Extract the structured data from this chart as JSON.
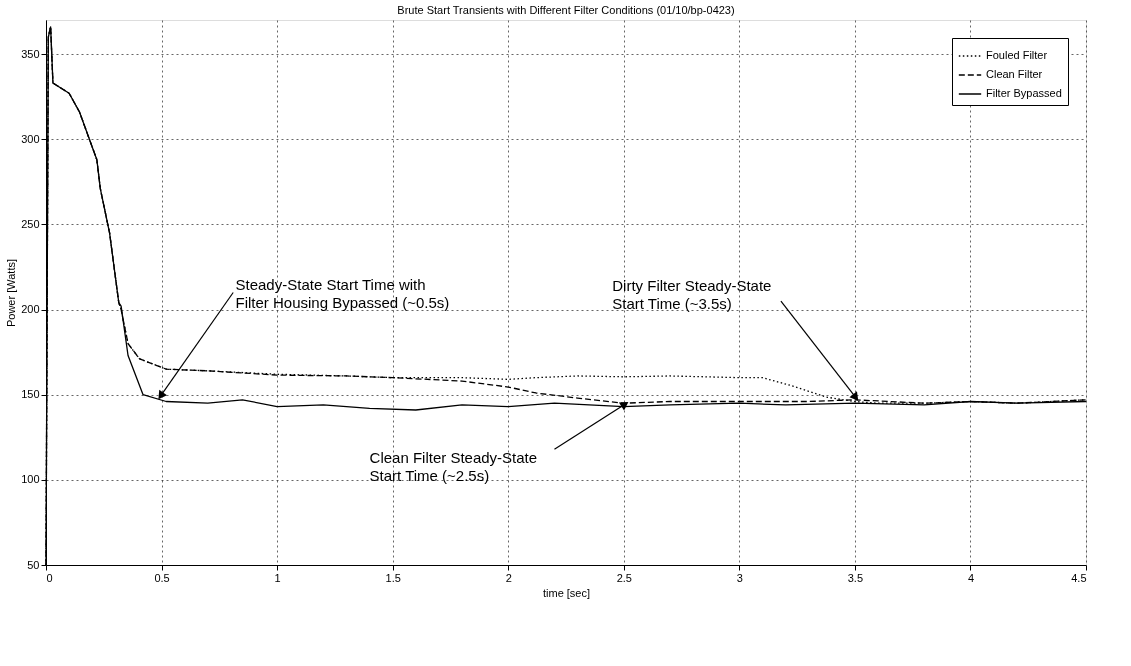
{
  "chart_data": {
    "type": "line",
    "title": "Brute Start Transients with Different Filter Conditions (01/10/bp-0423)",
    "xlabel": "time [sec]",
    "ylabel": "Power [Watts]",
    "xlim": [
      0,
      4.5
    ],
    "xticks": [
      0,
      0.5,
      1,
      1.5,
      2,
      2.5,
      3,
      3.5,
      4,
      4.5
    ],
    "ylim": [
      50,
      370
    ],
    "yticks": [
      50,
      100,
      150,
      200,
      250,
      300,
      350
    ],
    "grid": true,
    "legend": "top right",
    "series": [
      {
        "name": "Fouled Filter",
        "color": "#000000",
        "line_style": "dotted",
        "x": [
          0,
          0.01,
          0.02,
          0.03,
          0.1,
          0.145,
          0.185,
          0.22,
          0.235,
          0.275,
          0.315,
          0.325,
          0.355,
          0.405,
          0.52,
          0.7,
          1.0,
          1.3,
          1.5,
          1.8,
          2.0,
          2.12,
          2.3,
          2.5,
          2.7,
          3.0,
          3.1,
          3.22,
          3.3,
          3.38,
          3.45,
          3.5,
          3.6,
          3.8,
          4.0,
          4.2,
          4.5
        ],
        "values": [
          50,
          360,
          366,
          333,
          327,
          316,
          301,
          288,
          271,
          245,
          204,
          200,
          180,
          171,
          165,
          164,
          162,
          161,
          160,
          160,
          159,
          160,
          161,
          160.5,
          161,
          160,
          160,
          155.5,
          152,
          148.5,
          147,
          146,
          145,
          145,
          146,
          145,
          147
        ]
      },
      {
        "name": "Clean Filter",
        "color": "#000000",
        "line_style": "dashed",
        "x": [
          0,
          0.01,
          0.02,
          0.03,
          0.1,
          0.145,
          0.185,
          0.22,
          0.235,
          0.275,
          0.315,
          0.325,
          0.355,
          0.405,
          0.52,
          0.7,
          1.0,
          1.3,
          1.5,
          1.8,
          2.0,
          2.12,
          2.3,
          2.5,
          2.7,
          3.0,
          3.3,
          3.5,
          3.8,
          4.0,
          4.2,
          4.5
        ],
        "values": [
          50,
          360,
          366,
          333,
          327,
          316,
          301,
          288,
          271,
          245,
          204,
          200,
          180,
          171,
          165,
          164,
          161.5,
          161,
          160,
          158,
          154.5,
          151,
          148,
          145,
          146,
          146,
          146,
          147,
          145,
          146,
          145,
          147
        ]
      },
      {
        "name": "Filter Bypassed",
        "color": "#000000",
        "line_style": "solid",
        "x": [
          0,
          0.01,
          0.02,
          0.03,
          0.1,
          0.145,
          0.185,
          0.22,
          0.235,
          0.275,
          0.315,
          0.325,
          0.355,
          0.42,
          0.52,
          0.7,
          0.85,
          1.0,
          1.2,
          1.4,
          1.6,
          1.8,
          2.0,
          2.2,
          2.5,
          2.7,
          3.0,
          3.2,
          3.5,
          3.8,
          4.0,
          4.2,
          4.5
        ],
        "values": [
          50,
          360,
          366,
          333,
          327,
          316,
          301,
          288,
          271,
          245,
          204,
          202,
          173,
          150,
          146,
          145,
          147,
          143,
          144,
          142,
          141,
          144,
          143,
          145,
          143,
          144,
          145,
          144,
          145,
          144,
          146,
          145,
          146
        ]
      }
    ],
    "annotations": [
      {
        "text": "Steady-State Start Time  with\nFilter Housing Bypassed (~0.5s)",
        "x": 0.5,
        "y": 150
      },
      {
        "text": "Clean Filter Steady-State\nStart Time (~2.5s)",
        "x": 2.5,
        "y": 144
      },
      {
        "text": "Dirty Filter Steady-State\nStart Time (~3.5s)",
        "x": 3.5,
        "y": 149
      }
    ]
  }
}
